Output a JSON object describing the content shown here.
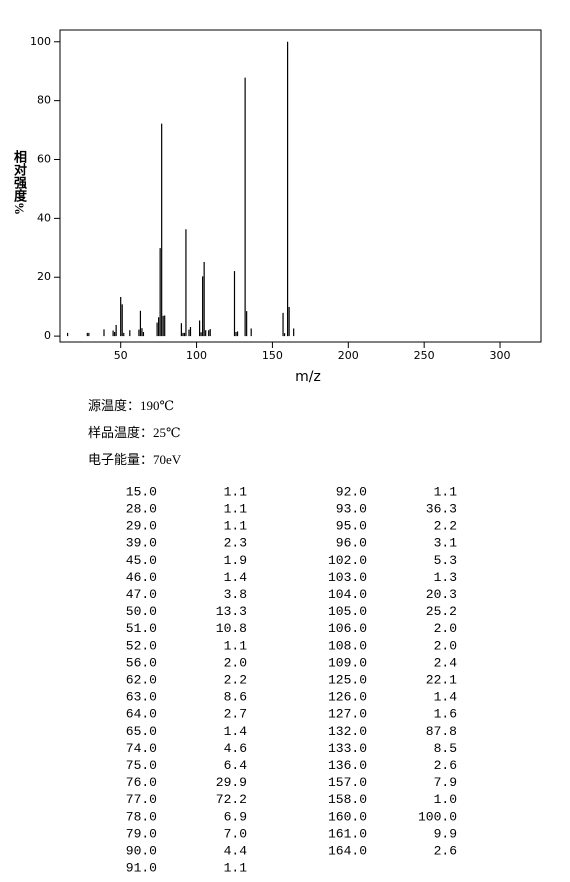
{
  "chart_data": {
    "type": "stick",
    "xlabel": "m/z",
    "ylabel": "相对强度%",
    "x": [
      15,
      28,
      29,
      39,
      45,
      46,
      47,
      50,
      51,
      52,
      56,
      62,
      63,
      64,
      65,
      74,
      75,
      76,
      77,
      78,
      79,
      90,
      91,
      92,
      93,
      95,
      96,
      102,
      103,
      104,
      105,
      106,
      108,
      109,
      125,
      126,
      127,
      132,
      133,
      136,
      157,
      158,
      160,
      161,
      164
    ],
    "values": [
      1.1,
      1.1,
      1.1,
      2.3,
      1.9,
      1.4,
      3.8,
      13.3,
      10.8,
      1.1,
      2.0,
      2.2,
      8.6,
      2.7,
      1.4,
      4.6,
      6.4,
      29.9,
      72.2,
      6.9,
      7.0,
      4.4,
      1.1,
      1.1,
      36.3,
      2.2,
      3.1,
      5.3,
      1.3,
      20.3,
      25.2,
      2.0,
      2.0,
      2.4,
      22.1,
      1.4,
      1.6,
      87.8,
      8.5,
      2.6,
      7.9,
      1.0,
      100.0,
      9.9,
      2.6
    ],
    "color": "#000000",
    "xlim": [
      10,
      327
    ],
    "ylim": [
      -2,
      104
    ],
    "xticks": [
      50,
      100,
      150,
      200,
      250,
      300
    ],
    "yticks": [
      0,
      20,
      40,
      60,
      80,
      100
    ]
  },
  "conditions": [
    "源温度：190℃",
    "样品温度：25℃",
    "电子能量：70eV"
  ],
  "table": {
    "rows": [
      [
        "15.0",
        "1.1"
      ],
      [
        "28.0",
        "1.1"
      ],
      [
        "29.0",
        "1.1"
      ],
      [
        "39.0",
        "2.3"
      ],
      [
        "45.0",
        "1.9"
      ],
      [
        "46.0",
        "1.4"
      ],
      [
        "47.0",
        "3.8"
      ],
      [
        "50.0",
        "13.3"
      ],
      [
        "51.0",
        "10.8"
      ],
      [
        "52.0",
        "1.1"
      ],
      [
        "56.0",
        "2.0"
      ],
      [
        "62.0",
        "2.2"
      ],
      [
        "63.0",
        "8.6"
      ],
      [
        "64.0",
        "2.7"
      ],
      [
        "65.0",
        "1.4"
      ],
      [
        "74.0",
        "4.6"
      ],
      [
        "75.0",
        "6.4"
      ],
      [
        "76.0",
        "29.9"
      ],
      [
        "77.0",
        "72.2"
      ],
      [
        "78.0",
        "6.9"
      ],
      [
        "79.0",
        "7.0"
      ],
      [
        "90.0",
        "4.4"
      ],
      [
        "91.0",
        "1.1"
      ],
      [
        "92.0",
        "1.1"
      ],
      [
        "93.0",
        "36.3"
      ],
      [
        "95.0",
        "2.2"
      ],
      [
        "96.0",
        "3.1"
      ],
      [
        "102.0",
        "5.3"
      ],
      [
        "103.0",
        "1.3"
      ],
      [
        "104.0",
        "20.3"
      ],
      [
        "105.0",
        "25.2"
      ],
      [
        "106.0",
        "2.0"
      ],
      [
        "108.0",
        "2.0"
      ],
      [
        "109.0",
        "2.4"
      ],
      [
        "125.0",
        "22.1"
      ],
      [
        "126.0",
        "1.4"
      ],
      [
        "127.0",
        "1.6"
      ],
      [
        "132.0",
        "87.8"
      ],
      [
        "133.0",
        "8.5"
      ],
      [
        "136.0",
        "2.6"
      ],
      [
        "157.0",
        "7.9"
      ],
      [
        "158.0",
        "1.0"
      ],
      [
        "160.0",
        "100.0"
      ],
      [
        "161.0",
        "9.9"
      ],
      [
        "164.0",
        "2.6"
      ]
    ]
  }
}
